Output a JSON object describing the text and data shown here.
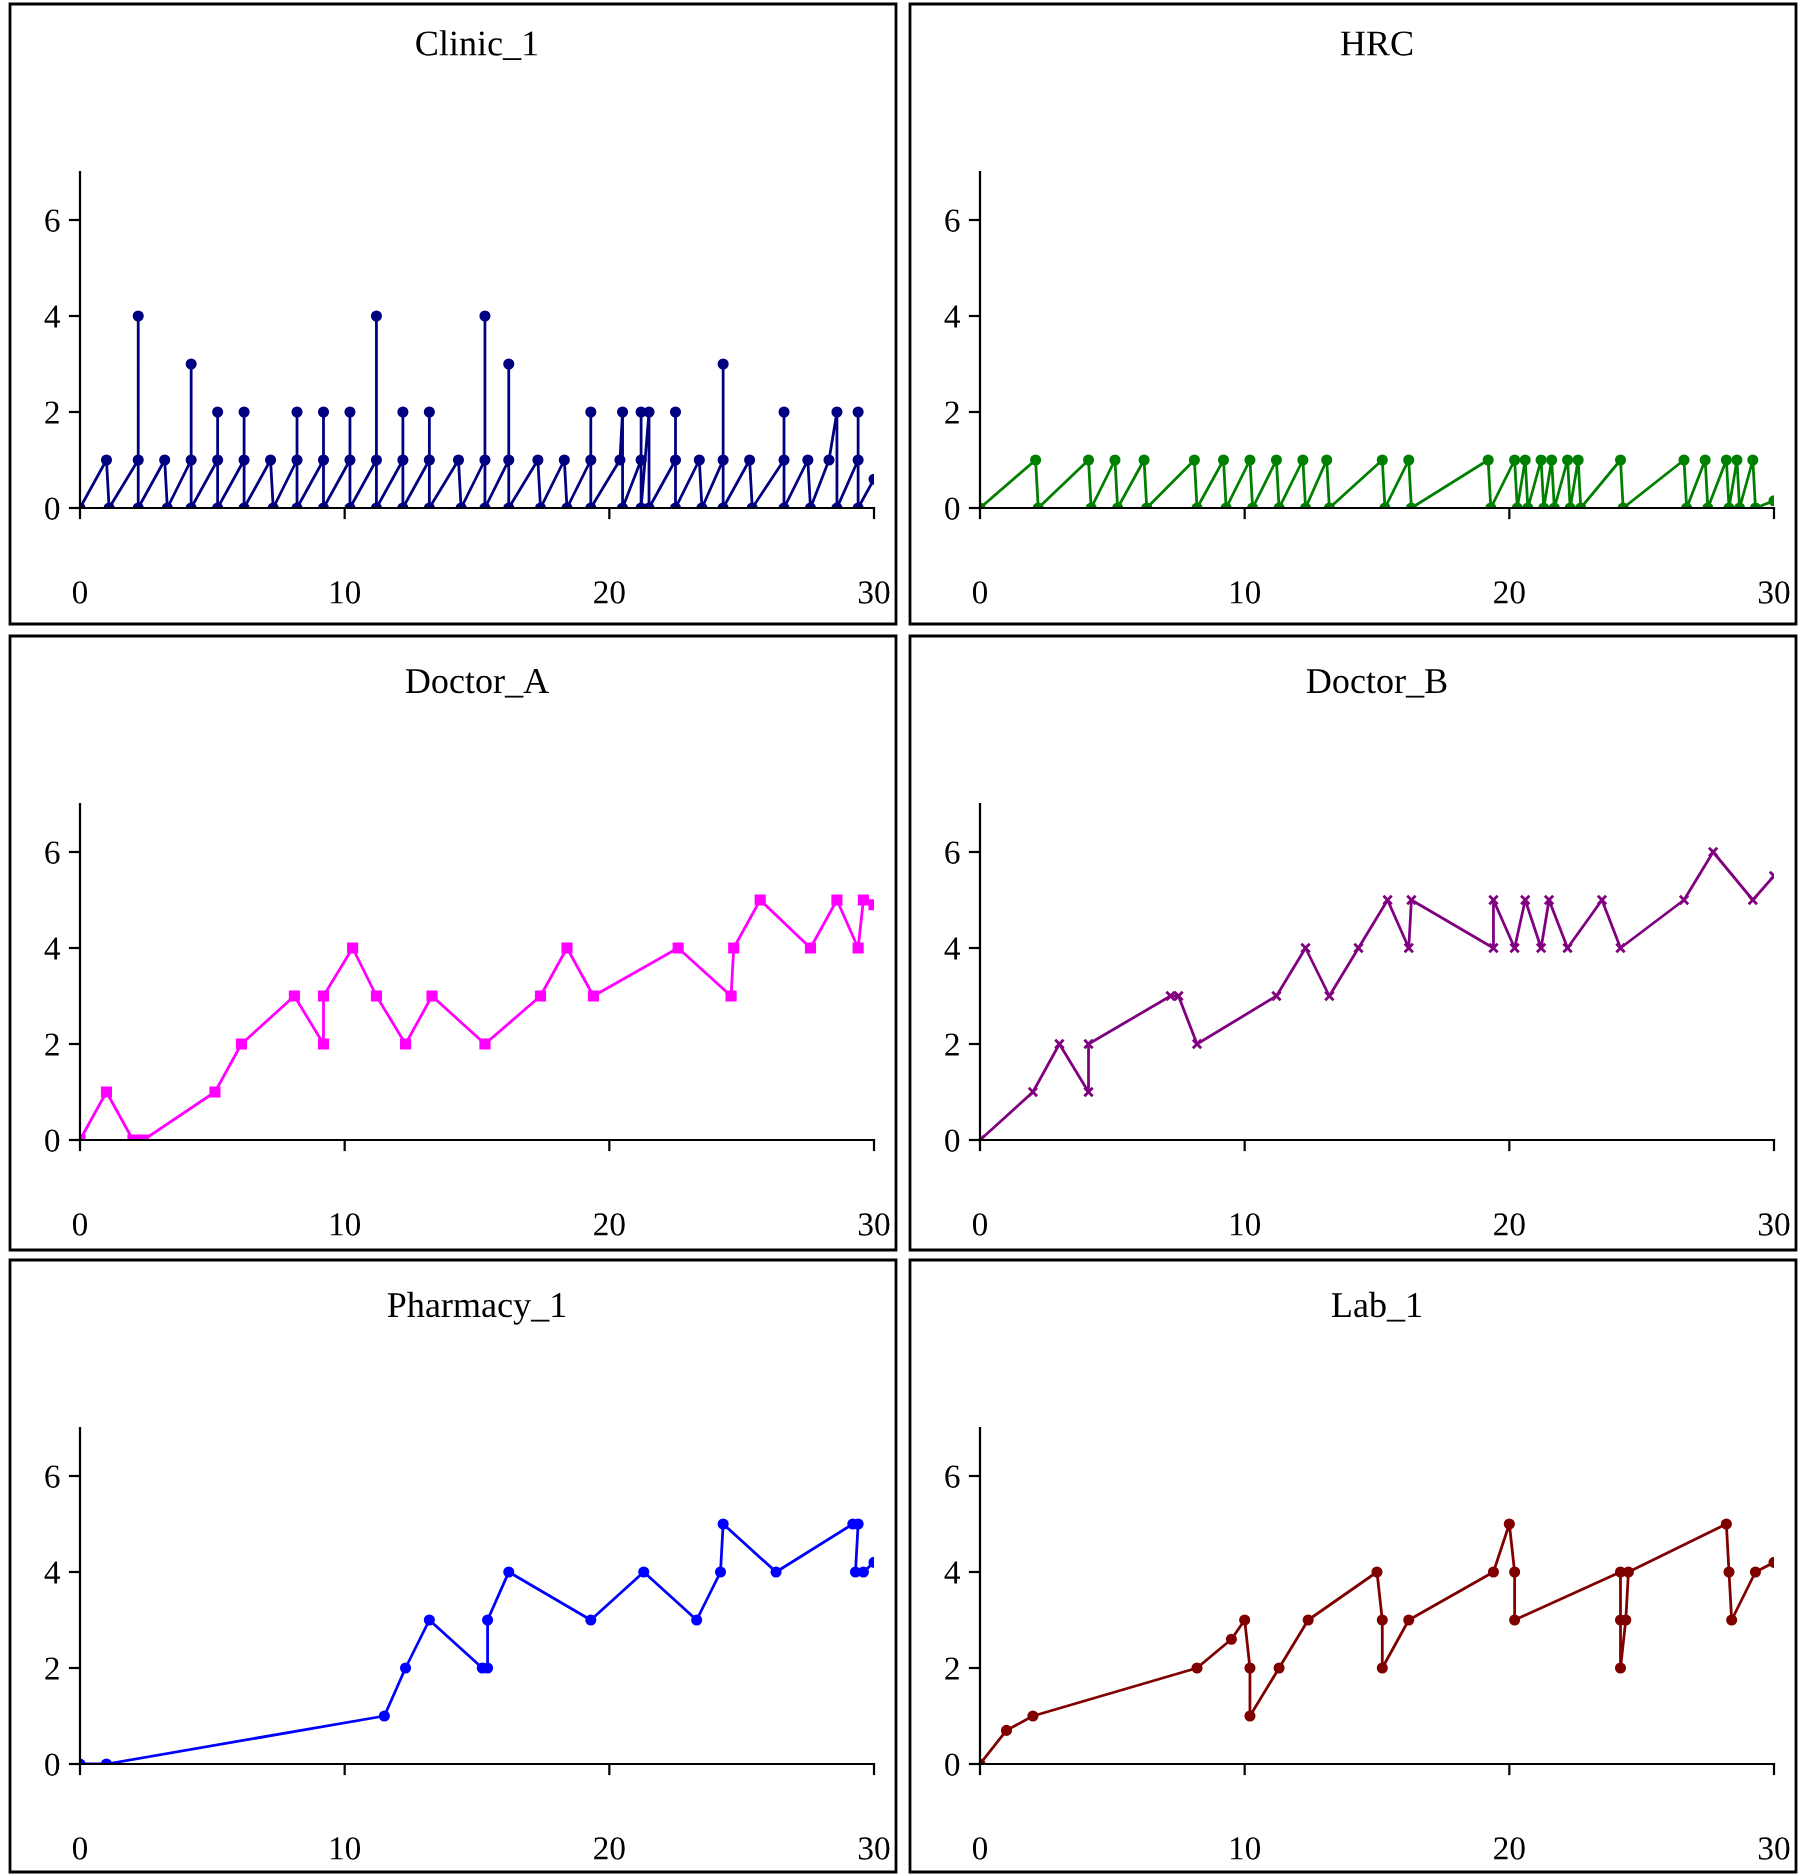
{
  "chart_data": [
    {
      "type": "line",
      "title": "Clinic_1",
      "xlim": [
        0,
        30
      ],
      "ylim": [
        0,
        7
      ],
      "xticks": [
        0,
        10,
        20,
        30
      ],
      "yticks": [
        0,
        2,
        4,
        6
      ],
      "marker": "circle",
      "grid": false,
      "legend": false,
      "series": [
        {
          "color": "#000080",
          "x": [
            0,
            1.0,
            1.1,
            2.2,
            2.2,
            2.2,
            3.2,
            3.3,
            4.2,
            4.2,
            4.2,
            5.2,
            5.2,
            5.2,
            6.2,
            6.2,
            6.2,
            7.2,
            7.3,
            8.2,
            8.2,
            8.2,
            9.2,
            9.2,
            9.2,
            10.2,
            10.2,
            10.2,
            11.2,
            11.2,
            11.2,
            12.2,
            12.2,
            12.2,
            13.2,
            13.2,
            13.2,
            14.3,
            14.4,
            15.3,
            15.3,
            15.3,
            16.2,
            16.2,
            16.2,
            17.3,
            17.4,
            18.3,
            18.4,
            19.3,
            19.3,
            19.3,
            20.4,
            20.5,
            20.5,
            21.2,
            21.2,
            21.2,
            21.5,
            21.5,
            22.5,
            22.5,
            22.5,
            23.4,
            23.5,
            24.3,
            24.3,
            24.3,
            25.3,
            25.4,
            26.6,
            26.6,
            26.6,
            27.5,
            27.6,
            28.3,
            28.6,
            28.6,
            29.4,
            29.4,
            29.4,
            30
          ],
          "values": [
            0,
            1,
            0,
            1,
            4,
            0,
            1,
            0,
            1,
            3,
            0,
            1,
            2,
            0,
            1,
            2,
            0,
            1,
            0,
            1,
            2,
            0,
            1,
            2,
            0,
            1,
            2,
            0,
            1,
            4,
            0,
            1,
            2,
            0,
            1,
            2,
            0,
            1,
            0,
            1,
            4,
            0,
            1,
            3,
            0,
            1,
            0,
            1,
            0,
            1,
            2,
            0,
            1,
            2,
            0,
            1,
            2,
            0,
            2,
            0,
            1,
            2,
            0,
            1,
            0,
            1,
            3,
            0,
            1,
            0,
            1,
            2,
            0,
            1,
            0,
            1,
            2,
            0,
            1,
            2,
            0,
            0.6
          ]
        }
      ]
    },
    {
      "type": "line",
      "title": "HRC",
      "xlim": [
        0,
        30
      ],
      "ylim": [
        0,
        7
      ],
      "xticks": [
        0,
        10,
        20,
        30
      ],
      "yticks": [
        0,
        2,
        4,
        6
      ],
      "marker": "circle",
      "grid": false,
      "legend": false,
      "series": [
        {
          "color": "#008000",
          "x": [
            0,
            2.1,
            2.2,
            4.1,
            4.2,
            5.1,
            5.2,
            6.2,
            6.3,
            8.1,
            8.2,
            9.2,
            9.3,
            10.2,
            10.3,
            11.2,
            11.3,
            12.2,
            12.3,
            13.1,
            13.2,
            15.2,
            15.3,
            16.2,
            16.3,
            19.2,
            19.3,
            20.2,
            20.3,
            20.6,
            20.7,
            21.2,
            21.3,
            21.6,
            21.7,
            22.2,
            22.3,
            22.6,
            22.7,
            24.2,
            24.3,
            26.6,
            26.7,
            27.4,
            27.5,
            28.2,
            28.3,
            28.6,
            28.7,
            29.2,
            29.3,
            30
          ],
          "values": [
            0,
            1,
            0,
            1,
            0,
            1,
            0,
            1,
            0,
            1,
            0,
            1,
            0,
            1,
            0,
            1,
            0,
            1,
            0,
            1,
            0,
            1,
            0,
            1,
            0,
            1,
            0,
            1,
            0,
            1,
            0,
            1,
            0,
            1,
            0,
            1,
            0,
            1,
            0,
            1,
            0,
            1,
            0,
            1,
            0,
            1,
            0,
            1,
            0,
            1,
            0,
            0.15
          ]
        }
      ]
    },
    {
      "type": "line",
      "title": "Doctor_A",
      "xlim": [
        0,
        30
      ],
      "ylim": [
        0,
        7
      ],
      "xticks": [
        0,
        10,
        20,
        30
      ],
      "yticks": [
        0,
        2,
        4,
        6
      ],
      "marker": "square",
      "grid": false,
      "legend": false,
      "series": [
        {
          "color": "#ff00ff",
          "x": [
            0,
            1,
            2,
            2.4,
            5.1,
            6.1,
            8.1,
            9.2,
            9.2,
            10.3,
            11.2,
            12.3,
            13.3,
            15.3,
            17.4,
            18.4,
            19.4,
            22.6,
            24.6,
            24.7,
            25.7,
            27.6,
            28.6,
            29.4,
            29.6,
            30
          ],
          "values": [
            0,
            1,
            0,
            0,
            1,
            2,
            3,
            2,
            3,
            4,
            3,
            2,
            3,
            2,
            3,
            4,
            3,
            4,
            3,
            4,
            5,
            4,
            5,
            4,
            5,
            4.9
          ]
        }
      ]
    },
    {
      "type": "line",
      "title": "Doctor_B",
      "xlim": [
        0,
        30
      ],
      "ylim": [
        0,
        7
      ],
      "xticks": [
        0,
        10,
        20,
        30
      ],
      "yticks": [
        0,
        2,
        4,
        6
      ],
      "marker": "cross",
      "grid": false,
      "legend": false,
      "series": [
        {
          "color": "#800080",
          "x": [
            0,
            2,
            3,
            4.1,
            4.1,
            7.2,
            7.5,
            8.2,
            11.2,
            12.3,
            13.2,
            14.3,
            15.4,
            16.2,
            16.3,
            19.4,
            19.4,
            20.2,
            20.6,
            21.2,
            21.5,
            22.2,
            23.5,
            24.2,
            26.6,
            27.7,
            29.2,
            30
          ],
          "values": [
            0,
            1,
            2,
            1,
            2,
            3,
            3,
            2,
            3,
            4,
            3,
            4,
            5,
            4,
            5,
            4,
            5,
            4,
            5,
            4,
            5,
            4,
            5,
            4,
            5,
            6,
            5,
            5.5
          ]
        }
      ]
    },
    {
      "type": "line",
      "title": "Pharmacy_1",
      "xlim": [
        0,
        30
      ],
      "ylim": [
        0,
        7
      ],
      "xticks": [
        0,
        10,
        20,
        30
      ],
      "yticks": [
        0,
        2,
        4,
        6
      ],
      "marker": "circle",
      "grid": false,
      "legend": false,
      "series": [
        {
          "color": "#0000ff",
          "x": [
            0,
            1,
            11.5,
            12.3,
            13.2,
            15.2,
            15.4,
            15.4,
            16.2,
            19.3,
            21.3,
            23.3,
            24.2,
            24.3,
            26.3,
            29.2,
            29.4,
            29.3,
            29.6,
            30
          ],
          "values": [
            0,
            0,
            1,
            2,
            3,
            2,
            2,
            3,
            4,
            3,
            4,
            3,
            4,
            5,
            4,
            5,
            5,
            4,
            4,
            4.2
          ]
        }
      ]
    },
    {
      "type": "line",
      "title": "Lab_1",
      "xlim": [
        0,
        30
      ],
      "ylim": [
        0,
        7
      ],
      "xticks": [
        0,
        10,
        20,
        30
      ],
      "yticks": [
        0,
        2,
        4,
        6
      ],
      "marker": "circle",
      "grid": false,
      "legend": false,
      "series": [
        {
          "color": "#800000",
          "x": [
            0,
            1,
            2,
            8.2,
            9.5,
            10,
            10.2,
            10.2,
            11.3,
            12.4,
            15,
            15.2,
            15.2,
            16.2,
            19.4,
            20,
            20.2,
            20.2,
            24.2,
            24.2,
            24.2,
            24.4,
            24.5,
            28.2,
            28.3,
            28.4,
            29.3,
            30
          ],
          "values": [
            0,
            0.7,
            1,
            2,
            2.6,
            3,
            2,
            1,
            2,
            3,
            4,
            3,
            2,
            3,
            4,
            5,
            4,
            3,
            4,
            3,
            2,
            3,
            4,
            5,
            4,
            3,
            4,
            4.2
          ]
        }
      ]
    }
  ]
}
